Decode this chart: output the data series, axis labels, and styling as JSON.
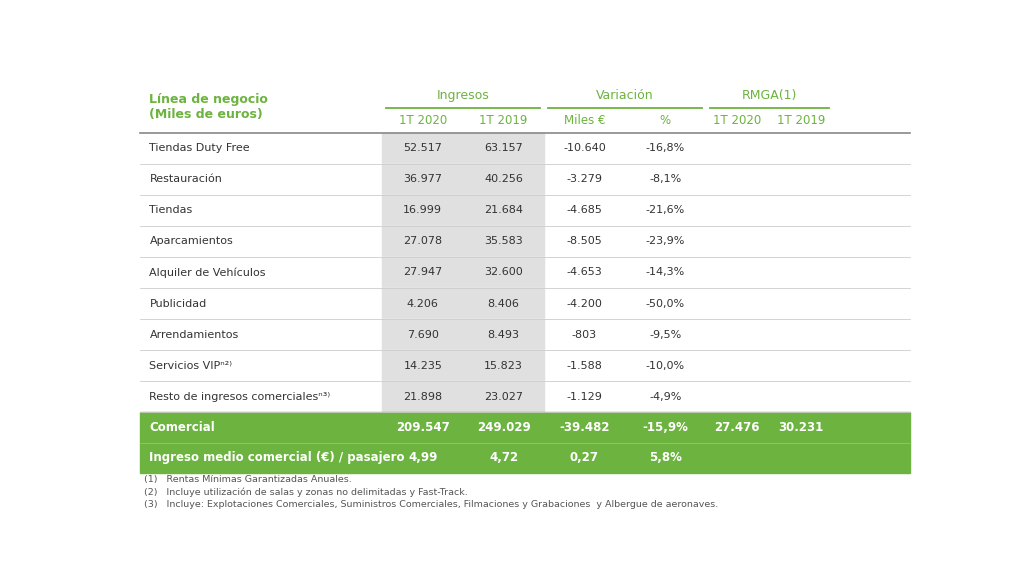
{
  "col_headers": [
    "1T 2020",
    "1T 2019",
    "Miles €",
    "%",
    "1T 2020",
    "1T 2019"
  ],
  "rows": [
    {
      "label": "Tiendas Duty Free",
      "vals": [
        "52.517",
        "63.157",
        "-10.640",
        "-16,8%",
        "",
        ""
      ]
    },
    {
      "label": "Restauración",
      "vals": [
        "36.977",
        "40.256",
        "-3.279",
        "-8,1%",
        "",
        ""
      ]
    },
    {
      "label": "Tiendas",
      "vals": [
        "16.999",
        "21.684",
        "-4.685",
        "-21,6%",
        "",
        ""
      ]
    },
    {
      "label": "Aparcamientos",
      "vals": [
        "27.078",
        "35.583",
        "-8.505",
        "-23,9%",
        "",
        ""
      ]
    },
    {
      "label": "Alquiler de Vehículos",
      "vals": [
        "27.947",
        "32.600",
        "-4.653",
        "-14,3%",
        "",
        ""
      ]
    },
    {
      "label": "Publicidad",
      "vals": [
        "4.206",
        "8.406",
        "-4.200",
        "-50,0%",
        "",
        ""
      ]
    },
    {
      "label": "Arrendamientos",
      "vals": [
        "7.690",
        "8.493",
        "-803",
        "-9,5%",
        "",
        ""
      ]
    },
    {
      "label": "Servicios VIPⁿ²⁾",
      "vals": [
        "14.235",
        "15.823",
        "-1.588",
        "-10,0%",
        "",
        ""
      ]
    },
    {
      "label": "Resto de ingresos comercialesⁿ³⁾",
      "vals": [
        "21.898",
        "23.027",
        "-1.129",
        "-4,9%",
        "",
        ""
      ]
    }
  ],
  "footer_rows": [
    {
      "label": "Comercial",
      "vals": [
        "209.547",
        "249.029",
        "-39.482",
        "-15,9%",
        "27.476",
        "30.231"
      ]
    },
    {
      "label": "Ingreso medio comercial (€) / pasajero",
      "vals": [
        "4,99",
        "4,72",
        "0,27",
        "5,8%",
        "",
        ""
      ]
    }
  ],
  "footnotes": [
    "(1)   Rentas Mínimas Garantizadas Anuales.",
    "(2)   Incluye utilización de salas y zonas no delimitadas y Fast-Track.",
    "(3)   Incluye: Explotaciones Comerciales, Suministros Comerciales, Filmaciones y Grabaciones  y Albergue de aeronaves."
  ],
  "green": "#6cb33f",
  "alt_col_color": "#e0e0e0",
  "white": "#ffffff",
  "light_gray": "#f5f5f5",
  "header_green": "#6cb33f",
  "bg_color": "#ffffff",
  "row_line_color": "#cccccc",
  "header_line_color": "#999999"
}
